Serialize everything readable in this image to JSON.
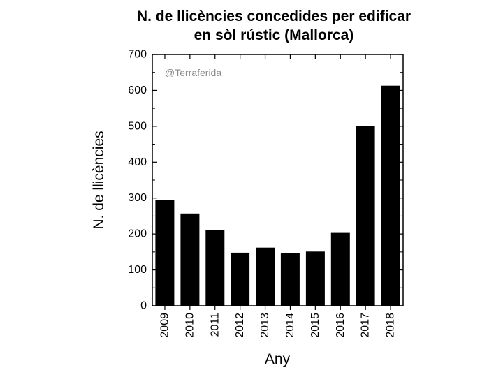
{
  "chart_data": {
    "type": "bar",
    "title_lines": [
      "N. de llicències concedides per edificar",
      "en sòl rústic (Mallorca)"
    ],
    "xlabel": "Any",
    "ylabel": "N. de llicències",
    "watermark": "@Terraferida",
    "categories": [
      "2009",
      "2010",
      "2011",
      "2012",
      "2013",
      "2014",
      "2015",
      "2016",
      "2017",
      "2018"
    ],
    "values": [
      294,
      257,
      212,
      148,
      162,
      147,
      151,
      203,
      500,
      613
    ],
    "ylim": [
      0,
      700
    ],
    "yticks": [
      0,
      100,
      200,
      300,
      400,
      500,
      600,
      700
    ],
    "bar_color": "#000000",
    "grid": false,
    "legend": "none"
  }
}
